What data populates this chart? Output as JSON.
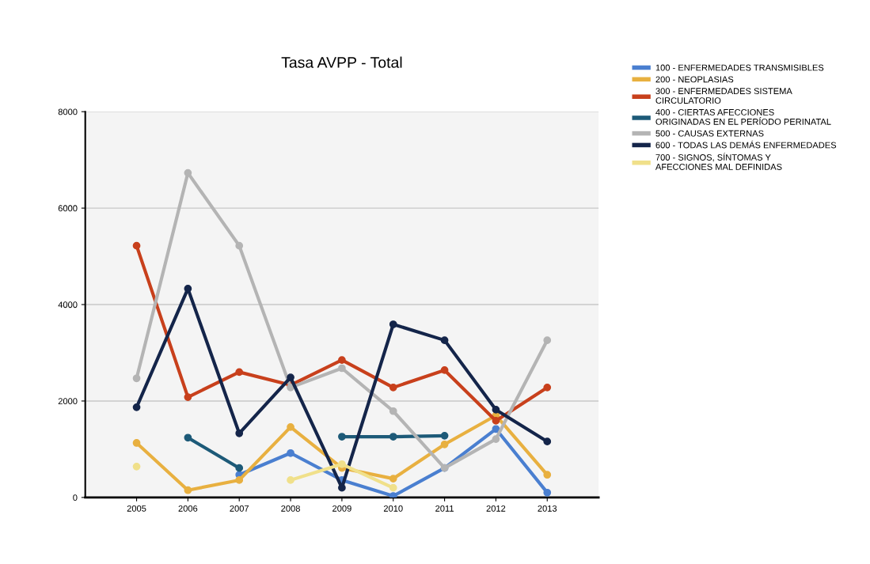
{
  "chart_data": {
    "type": "line",
    "title": "Tasa AVPP - Total",
    "x": [
      2005,
      2006,
      2007,
      2008,
      2009,
      2010,
      2011,
      2012,
      2013
    ],
    "xlim": [
      2004,
      2014
    ],
    "xticks": [
      2005,
      2006,
      2007,
      2008,
      2009,
      2010,
      2011,
      2012,
      2013
    ],
    "ylim": [
      0,
      8000
    ],
    "yticks": [
      0,
      2000,
      4000,
      6000,
      8000
    ],
    "grid": "y",
    "legend": "top right",
    "marker": "circle",
    "line_style": "solid",
    "series": [
      {
        "name": "100 - ENFERMEDADES TRANSMISIBLES",
        "color": "#4a7fd0",
        "values": [
          null,
          null,
          470,
          920,
          360,
          30,
          610,
          1420,
          100
        ]
      },
      {
        "name": "200 - NEOPLASIAS",
        "color": "#e8b040",
        "values": [
          1130,
          150,
          360,
          1460,
          610,
          390,
          1100,
          1700,
          470
        ]
      },
      {
        "name": "300 - ENFERMEDADES SISTEMA CIRCULATORIO",
        "color": "#c8401c",
        "values": [
          5220,
          2080,
          2600,
          2330,
          2850,
          2280,
          2640,
          1590,
          2280
        ]
      },
      {
        "name": "400 - CIERTAS AFECCIONES ORIGINADAS EN EL PERÍODO PERINATAL",
        "color": "#1d5a78",
        "values": [
          null,
          1240,
          610,
          null,
          1260,
          1260,
          1280,
          null,
          null
        ]
      },
      {
        "name": "500 - CAUSAS EXTERNAS",
        "color": "#b4b4b4",
        "values": [
          2470,
          6730,
          5220,
          2280,
          2680,
          1790,
          610,
          1210,
          3260
        ]
      },
      {
        "name": "600 - TODAS LAS DEMÁS ENFERMEDADES",
        "color": "#14254a",
        "values": [
          1870,
          4330,
          1330,
          2490,
          200,
          3590,
          3260,
          1820,
          1160
        ]
      },
      {
        "name": "700 - SIGNOS, SÍNTOMAS Y AFECCIONES MAL DEFINIDAS",
        "color": "#f0e08a",
        "values": [
          640,
          null,
          null,
          360,
          690,
          200,
          null,
          null,
          null
        ]
      }
    ]
  }
}
